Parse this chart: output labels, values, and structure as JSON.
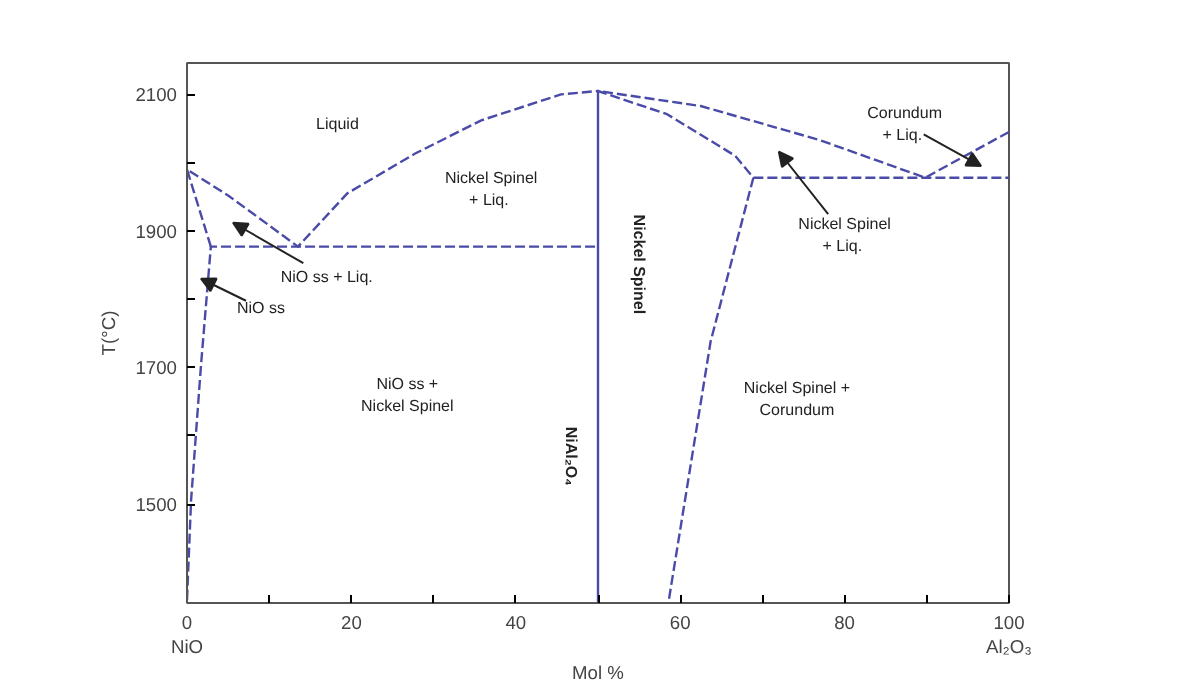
{
  "chart_data": {
    "type": "line",
    "xlabel": "Mol %",
    "ylabel": "T(°C)",
    "xlim": [
      0,
      100
    ],
    "ylim": [
      1355,
      2146
    ],
    "xticks": [
      {
        "value": 0,
        "label": "0\nNiO"
      },
      {
        "value": 10,
        "label": null
      },
      20,
      {
        "value": 30,
        "label": null
      },
      40,
      {
        "value": 50,
        "label": null
      },
      60,
      {
        "value": 70,
        "label": null
      },
      80,
      {
        "value": 90,
        "label": null
      },
      {
        "value": 100,
        "label": "100\nAl₂O₃"
      }
    ],
    "yticks": [
      1500,
      {
        "value": 1600,
        "label": null
      },
      1700,
      {
        "value": 1800,
        "label": null
      },
      1900,
      {
        "value": 2000,
        "label": null
      },
      2100
    ],
    "grid": false,
    "marker": "none",
    "line_style": "dashed",
    "series": [
      {
        "color": "#4a4aa8",
        "x": [
          2.9,
          0,
          5,
          10,
          13.5,
          19.5,
          27.7,
          35.8,
          45.5,
          50
        ],
        "values": [
          1877,
          1990,
          1952,
          1908,
          1877,
          1955,
          2013,
          2062,
          2100,
          2105
        ]
      },
      {
        "color": "#4a4aa8",
        "x": [
          0,
          0.5,
          1.7,
          2.9,
          50
        ],
        "values": [
          1360,
          1506,
          1703,
          1877,
          1877
        ]
      },
      {
        "color": "#4a4aa8",
        "x": [
          50,
          50
        ],
        "values": [
          1355,
          2105
        ],
        "line_style": "solid"
      },
      {
        "color": "#4a4aa8",
        "x": [
          100,
          89.8,
          77,
          62.5,
          50,
          58.4,
          66.7,
          68.9,
          63.7,
          58.6
        ],
        "values": [
          2045,
          1978,
          2033,
          2083,
          2105,
          2071,
          2010,
          1978,
          1738,
          1358
        ]
      },
      {
        "color": "#4a4aa8",
        "x": [
          68.9,
          100
        ],
        "values": [
          1978,
          1978
        ]
      }
    ],
    "annotations": [
      "Liquid",
      "Nickel Spinel\n + Liq.",
      "NiO ss + Liq.",
      {
        "text": "NiO ss",
        "x": 1.7,
        "y": 1830
      },
      "NiO ss +\nNickel Spinel",
      "NiAl₂O₄",
      "Nickel Spinel",
      "Nickel Spinel\n + Liq.",
      "Corundum\n + Liq.",
      "Nickel Spinel +\nCorundum"
    ]
  }
}
